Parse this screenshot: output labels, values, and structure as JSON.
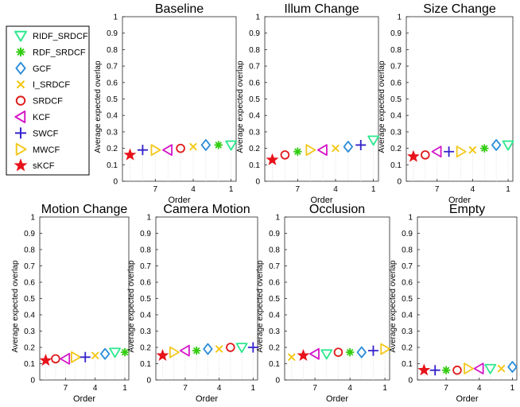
{
  "figure": {
    "description_free": true
  },
  "legend": {
    "entries": [
      {
        "name": "RIDF_SRDCF",
        "marker": "triangle-down",
        "color": "#2ee88e"
      },
      {
        "name": "RDF_SRDCF",
        "marker": "asterisk",
        "color": "#33cc11"
      },
      {
        "name": "GCF",
        "marker": "diamond",
        "color": "#2b8cd9"
      },
      {
        "name": "I_SRDCF",
        "marker": "x",
        "color": "#f3c60b"
      },
      {
        "name": "SRDCF",
        "marker": "circle",
        "color": "#e01b1b"
      },
      {
        "name": "KCF",
        "marker": "triangle-left",
        "color": "#d417c8"
      },
      {
        "name": "SWCF",
        "marker": "plus",
        "color": "#3322cc"
      },
      {
        "name": "MWCF",
        "marker": "triangle-right",
        "color": "#f2c81c"
      },
      {
        "name": "sKCF",
        "marker": "star",
        "color": "#e8121a"
      }
    ]
  },
  "chart_data": [
    {
      "type": "scatter",
      "title": "Baseline",
      "xlabel": "Order",
      "ylabel": "Average expected overlap",
      "ylim": [
        0,
        1
      ],
      "xlim": [
        9.6,
        0.6
      ],
      "yticks": [
        "0",
        "0.1",
        "0.2",
        "0.3",
        "0.4",
        "0.5",
        "0.6",
        "0.7",
        "0.8",
        "0.9",
        "1"
      ],
      "xticks": [
        {
          "value": 7,
          "label": "7"
        },
        {
          "value": 4,
          "label": "4"
        },
        {
          "value": 1,
          "label": "1"
        }
      ],
      "points": [
        {
          "tracker": "sKCF",
          "x": 9,
          "y": 0.16
        },
        {
          "tracker": "SWCF",
          "x": 8,
          "y": 0.19
        },
        {
          "tracker": "MWCF",
          "x": 7,
          "y": 0.19
        },
        {
          "tracker": "KCF",
          "x": 6,
          "y": 0.19
        },
        {
          "tracker": "SRDCF",
          "x": 5,
          "y": 0.2
        },
        {
          "tracker": "I_SRDCF",
          "x": 4,
          "y": 0.21
        },
        {
          "tracker": "GCF",
          "x": 3,
          "y": 0.22
        },
        {
          "tracker": "RDF_SRDCF",
          "x": 2,
          "y": 0.22
        },
        {
          "tracker": "RIDF_SRDCF",
          "x": 1,
          "y": 0.22
        }
      ]
    },
    {
      "type": "scatter",
      "title": "Illum Change",
      "xlabel": "Order",
      "ylabel": "Average expected overlap",
      "ylim": [
        0,
        1
      ],
      "xlim": [
        9.6,
        0.6
      ],
      "yticks": [
        "0",
        "0.1",
        "0.2",
        "0.3",
        "0.4",
        "0.5",
        "0.6",
        "0.7",
        "0.8",
        "0.9",
        "1"
      ],
      "xticks": [
        {
          "value": 7,
          "label": "7"
        },
        {
          "value": 4,
          "label": "4"
        },
        {
          "value": 1,
          "label": "1"
        }
      ],
      "points": [
        {
          "tracker": "sKCF",
          "x": 9,
          "y": 0.13
        },
        {
          "tracker": "SRDCF",
          "x": 8,
          "y": 0.16
        },
        {
          "tracker": "RDF_SRDCF",
          "x": 7,
          "y": 0.18
        },
        {
          "tracker": "MWCF",
          "x": 6,
          "y": 0.19
        },
        {
          "tracker": "KCF",
          "x": 5,
          "y": 0.19
        },
        {
          "tracker": "I_SRDCF",
          "x": 4,
          "y": 0.2
        },
        {
          "tracker": "GCF",
          "x": 3,
          "y": 0.21
        },
        {
          "tracker": "SWCF",
          "x": 2,
          "y": 0.22
        },
        {
          "tracker": "RIDF_SRDCF",
          "x": 1,
          "y": 0.25
        }
      ]
    },
    {
      "type": "scatter",
      "title": "Size Change",
      "xlabel": "Order",
      "ylabel": "Average expected overlap",
      "ylim": [
        0,
        1
      ],
      "xlim": [
        9.6,
        0.6
      ],
      "yticks": [
        "0",
        "0.1",
        "0.2",
        "0.3",
        "0.4",
        "0.5",
        "0.6",
        "0.7",
        "0.8",
        "0.9",
        "1"
      ],
      "xticks": [
        {
          "value": 7,
          "label": "7"
        },
        {
          "value": 4,
          "label": "4"
        },
        {
          "value": 1,
          "label": "1"
        }
      ],
      "points": [
        {
          "tracker": "sKCF",
          "x": 9,
          "y": 0.15
        },
        {
          "tracker": "SRDCF",
          "x": 8,
          "y": 0.16
        },
        {
          "tracker": "KCF",
          "x": 7,
          "y": 0.18
        },
        {
          "tracker": "SWCF",
          "x": 6,
          "y": 0.18
        },
        {
          "tracker": "MWCF",
          "x": 5,
          "y": 0.18
        },
        {
          "tracker": "I_SRDCF",
          "x": 4,
          "y": 0.19
        },
        {
          "tracker": "RDF_SRDCF",
          "x": 3,
          "y": 0.2
        },
        {
          "tracker": "GCF",
          "x": 2,
          "y": 0.22
        },
        {
          "tracker": "RIDF_SRDCF",
          "x": 1,
          "y": 0.22
        }
      ]
    },
    {
      "type": "scatter",
      "title": "Motion Change",
      "xlabel": "Order",
      "ylabel": "Average expected overlap",
      "ylim": [
        0,
        1
      ],
      "xlim": [
        9.6,
        0.6
      ],
      "yticks": [
        "0",
        "0.1",
        "0.2",
        "0.3",
        "0.4",
        "0.5",
        "0.6",
        "0.7",
        "0.8",
        "0.9",
        "1"
      ],
      "xticks": [
        {
          "value": 7,
          "label": "7"
        },
        {
          "value": 4,
          "label": "4"
        },
        {
          "value": 1,
          "label": "1"
        }
      ],
      "points": [
        {
          "tracker": "sKCF",
          "x": 9,
          "y": 0.12
        },
        {
          "tracker": "SRDCF",
          "x": 8,
          "y": 0.13
        },
        {
          "tracker": "KCF",
          "x": 7,
          "y": 0.13
        },
        {
          "tracker": "MWCF",
          "x": 6,
          "y": 0.14
        },
        {
          "tracker": "SWCF",
          "x": 5,
          "y": 0.14
        },
        {
          "tracker": "I_SRDCF",
          "x": 4,
          "y": 0.15
        },
        {
          "tracker": "GCF",
          "x": 3,
          "y": 0.16
        },
        {
          "tracker": "RIDF_SRDCF",
          "x": 2,
          "y": 0.17
        },
        {
          "tracker": "RDF_SRDCF",
          "x": 1,
          "y": 0.17
        }
      ]
    },
    {
      "type": "scatter",
      "title": "Camera Motion",
      "xlabel": "Order",
      "ylabel": "Average expected overlap",
      "ylim": [
        0,
        1
      ],
      "xlim": [
        9.6,
        0.6
      ],
      "yticks": [
        "0",
        "0.1",
        "0.2",
        "0.3",
        "0.4",
        "0.5",
        "0.6",
        "0.7",
        "0.8",
        "0.9",
        "1"
      ],
      "xticks": [
        {
          "value": 7,
          "label": "7"
        },
        {
          "value": 4,
          "label": "4"
        },
        {
          "value": 1,
          "label": "1"
        }
      ],
      "points": [
        {
          "tracker": "sKCF",
          "x": 9,
          "y": 0.15
        },
        {
          "tracker": "MWCF",
          "x": 8,
          "y": 0.17
        },
        {
          "tracker": "KCF",
          "x": 7,
          "y": 0.18
        },
        {
          "tracker": "RDF_SRDCF",
          "x": 6,
          "y": 0.18
        },
        {
          "tracker": "GCF",
          "x": 5,
          "y": 0.19
        },
        {
          "tracker": "I_SRDCF",
          "x": 4,
          "y": 0.19
        },
        {
          "tracker": "SRDCF",
          "x": 3,
          "y": 0.2
        },
        {
          "tracker": "RIDF_SRDCF",
          "x": 2,
          "y": 0.2
        },
        {
          "tracker": "SWCF",
          "x": 1,
          "y": 0.2
        }
      ]
    },
    {
      "type": "scatter",
      "title": "Occlusion",
      "xlabel": "Order",
      "ylabel": "Average expected overlap",
      "ylim": [
        0,
        1
      ],
      "xlim": [
        9.6,
        0.6
      ],
      "yticks": [
        "0",
        "0.1",
        "0.2",
        "0.3",
        "0.4",
        "0.5",
        "0.6",
        "0.7",
        "0.8",
        "0.9",
        "1"
      ],
      "xticks": [
        {
          "value": 7,
          "label": "7"
        },
        {
          "value": 4,
          "label": "4"
        },
        {
          "value": 1,
          "label": "1"
        }
      ],
      "points": [
        {
          "tracker": "I_SRDCF",
          "x": 9,
          "y": 0.14
        },
        {
          "tracker": "sKCF",
          "x": 8,
          "y": 0.15
        },
        {
          "tracker": "KCF",
          "x": 7,
          "y": 0.16
        },
        {
          "tracker": "RIDF_SRDCF",
          "x": 6,
          "y": 0.16
        },
        {
          "tracker": "SRDCF",
          "x": 5,
          "y": 0.17
        },
        {
          "tracker": "RDF_SRDCF",
          "x": 4,
          "y": 0.17
        },
        {
          "tracker": "GCF",
          "x": 3,
          "y": 0.17
        },
        {
          "tracker": "SWCF",
          "x": 2,
          "y": 0.18
        },
        {
          "tracker": "MWCF",
          "x": 1,
          "y": 0.19
        }
      ]
    },
    {
      "type": "scatter",
      "title": "Empty",
      "xlabel": "Order",
      "ylabel": "Average expected overlap",
      "ylim": [
        0,
        1
      ],
      "xlim": [
        9.6,
        0.6
      ],
      "yticks": [
        "0",
        "0.1",
        "0.2",
        "0.3",
        "0.4",
        "0.5",
        "0.6",
        "0.7",
        "0.8",
        "0.9",
        "1"
      ],
      "xticks": [
        {
          "value": 7,
          "label": "7"
        },
        {
          "value": 4,
          "label": "4"
        },
        {
          "value": 1,
          "label": "1"
        }
      ],
      "points": [
        {
          "tracker": "sKCF",
          "x": 9,
          "y": 0.06
        },
        {
          "tracker": "SWCF",
          "x": 8,
          "y": 0.06
        },
        {
          "tracker": "RDF_SRDCF",
          "x": 7,
          "y": 0.06
        },
        {
          "tracker": "SRDCF",
          "x": 6,
          "y": 0.06
        },
        {
          "tracker": "MWCF",
          "x": 5,
          "y": 0.07
        },
        {
          "tracker": "KCF",
          "x": 4,
          "y": 0.07
        },
        {
          "tracker": "RIDF_SRDCF",
          "x": 3,
          "y": 0.07
        },
        {
          "tracker": "I_SRDCF",
          "x": 2,
          "y": 0.07
        },
        {
          "tracker": "GCF",
          "x": 1,
          "y": 0.08
        }
      ]
    }
  ]
}
